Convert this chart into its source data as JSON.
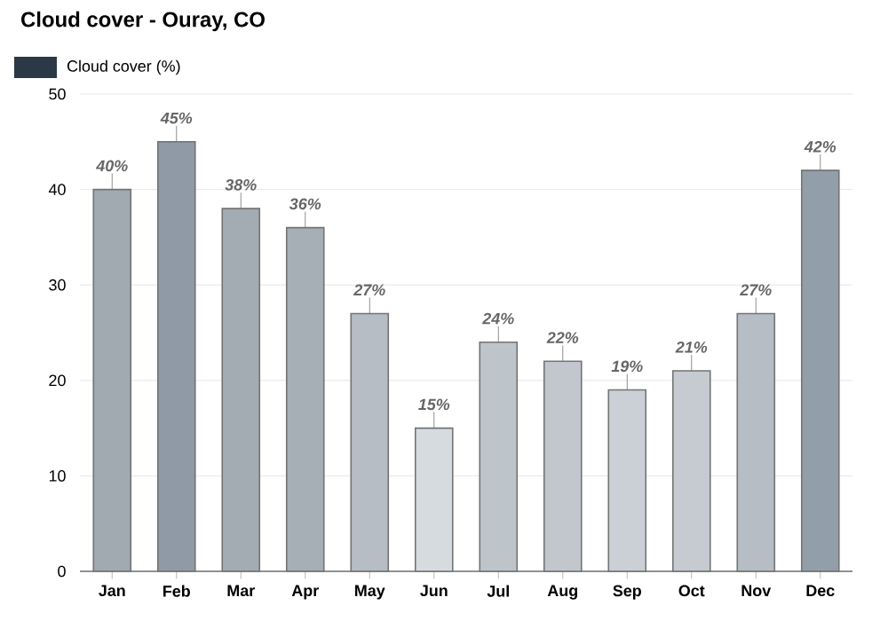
{
  "chart_data": {
    "type": "bar",
    "title": "Cloud cover - Ouray, CO",
    "categories": [
      "Jan",
      "Feb",
      "Mar",
      "Apr",
      "May",
      "Jun",
      "Jul",
      "Aug",
      "Sep",
      "Oct",
      "Nov",
      "Dec"
    ],
    "series": [
      {
        "name": "Cloud cover (%)",
        "color": "#2b3845",
        "colors": [
          "#a1a9b1",
          "#8f9aa6",
          "#a3abb3",
          "#a6aeb6",
          "#b6bdc4",
          "#d6dbe0",
          "#bdc4ca",
          "#c1c7cd",
          "#cad0d5",
          "#c5cbd0",
          "#b6bdc4",
          "#939eab"
        ],
        "values": [
          40,
          45,
          38,
          36,
          27,
          15,
          24,
          22,
          19,
          21,
          27,
          42
        ],
        "value_labels": [
          "40%",
          "45%",
          "38%",
          "36%",
          "27%",
          "15%",
          "24%",
          "22%",
          "19%",
          "21%",
          "27%",
          "42%"
        ]
      }
    ],
    "ylim": [
      0,
      50
    ],
    "yticks": [
      0,
      10,
      20,
      30,
      40,
      50
    ],
    "grid": "y",
    "legend": "top left"
  }
}
